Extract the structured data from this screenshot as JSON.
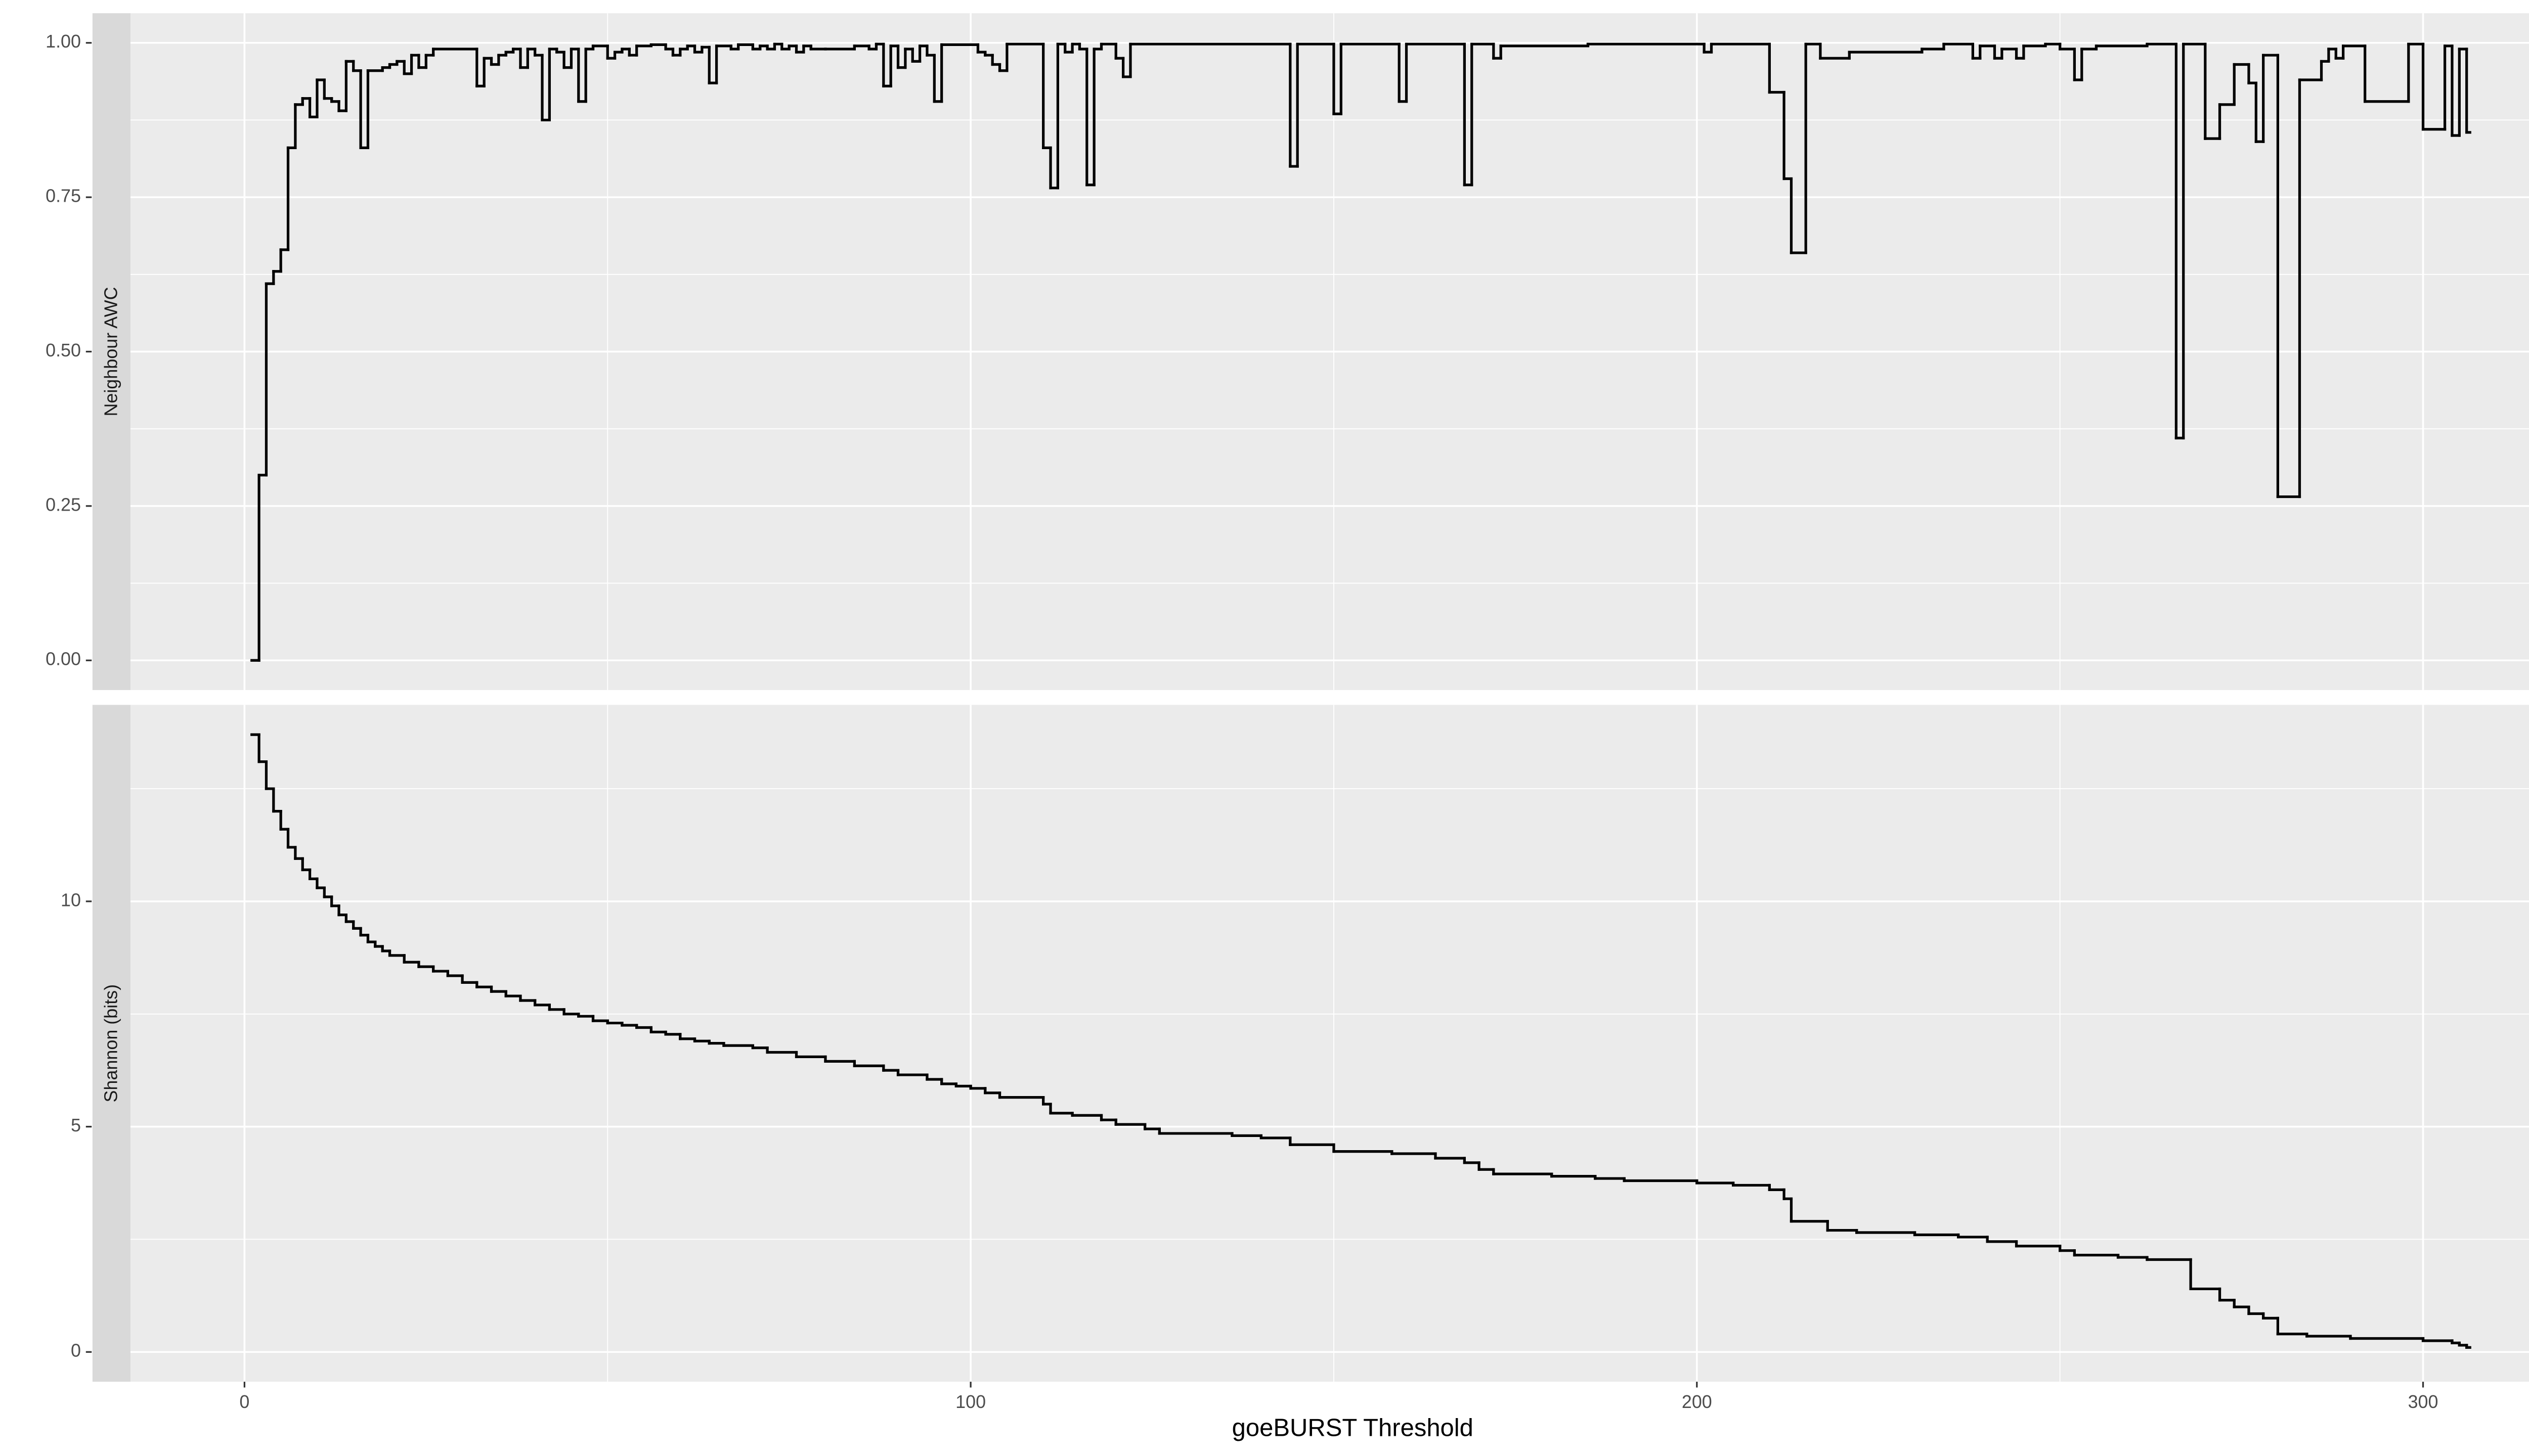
{
  "chart_data": [
    {
      "type": "line",
      "ylabel": "Neighbour AWC",
      "color": "#000000",
      "grid": true,
      "xlim": [
        -15.7,
        320.9
      ],
      "xticks": [
        0,
        100,
        200,
        300
      ],
      "ylim": [
        -0.048,
        1.048
      ],
      "yticks": [
        {
          "value": 0,
          "label": "0.00"
        },
        {
          "value": 0.25,
          "label": "0.25"
        },
        {
          "value": 0.5,
          "label": "0.50"
        },
        {
          "value": 0.75,
          "label": "0.75"
        },
        {
          "value": 1,
          "label": "1.00"
        }
      ],
      "x": [
        1,
        2,
        3,
        4,
        5,
        6,
        7,
        8,
        9,
        10,
        11,
        12,
        13,
        14,
        15,
        16,
        17,
        19,
        20,
        21,
        22,
        23,
        24,
        25,
        26,
        32,
        33,
        34,
        35,
        36,
        37,
        38,
        39,
        40,
        41,
        42,
        43,
        44,
        45,
        46,
        47,
        48,
        50,
        51,
        52,
        53,
        54,
        56,
        58,
        59,
        60,
        61,
        62,
        63,
        64,
        65,
        67,
        68,
        70,
        71,
        72,
        73,
        74,
        75,
        76,
        77,
        78,
        80,
        84,
        86,
        87,
        88,
        89,
        90,
        91,
        92,
        93,
        94,
        95,
        96,
        101,
        102,
        103,
        104,
        105,
        110,
        111,
        112,
        113,
        114,
        115,
        116,
        117,
        118,
        120,
        121,
        122,
        144,
        145,
        150,
        151,
        159,
        160,
        168,
        169,
        172,
        173,
        185,
        201,
        202,
        210,
        212,
        213,
        215,
        217,
        221,
        231,
        234,
        238,
        239,
        241,
        242,
        244,
        245,
        248,
        250,
        252,
        253,
        255,
        262,
        266,
        267,
        270,
        272,
        274,
        276,
        277,
        278,
        280,
        283,
        286,
        287,
        288,
        289,
        292,
        298,
        300,
        303,
        304,
        305,
        306
      ],
      "values": [
        0,
        0.3,
        0.61,
        0.63,
        0.665,
        0.83,
        0.9,
        0.91,
        0.88,
        0.94,
        0.91,
        0.905,
        0.89,
        0.97,
        0.955,
        0.83,
        0.955,
        0.96,
        0.965,
        0.97,
        0.95,
        0.98,
        0.96,
        0.98,
        0.99,
        0.93,
        0.975,
        0.965,
        0.98,
        0.985,
        0.99,
        0.96,
        0.99,
        0.98,
        0.875,
        0.99,
        0.985,
        0.96,
        0.99,
        0.905,
        0.99,
        0.995,
        0.975,
        0.985,
        0.99,
        0.98,
        0.995,
        0.997,
        0.99,
        0.98,
        0.99,
        0.995,
        0.985,
        0.993,
        0.935,
        0.995,
        0.99,
        0.997,
        0.99,
        0.995,
        0.99,
        0.998,
        0.99,
        0.995,
        0.985,
        0.995,
        0.99,
        0.99,
        0.995,
        0.99,
        0.998,
        0.93,
        0.995,
        0.96,
        0.99,
        0.97,
        0.995,
        0.98,
        0.905,
        0.997,
        0.985,
        0.98,
        0.965,
        0.955,
        0.998,
        0.83,
        0.765,
        0.998,
        0.985,
        0.998,
        0.99,
        0.77,
        0.99,
        0.998,
        0.975,
        0.945,
        0.998,
        0.8,
        0.998,
        0.885,
        0.998,
        0.905,
        0.998,
        0.77,
        0.998,
        0.975,
        0.995,
        0.998,
        0.985,
        0.998,
        0.92,
        0.78,
        0.66,
        0.998,
        0.975,
        0.985,
        0.99,
        0.998,
        0.975,
        0.995,
        0.975,
        0.99,
        0.975,
        0.995,
        0.998,
        0.99,
        0.94,
        0.99,
        0.995,
        0.998,
        0.36,
        0.998,
        0.845,
        0.9,
        0.965,
        0.935,
        0.84,
        0.98,
        0.265,
        0.94,
        0.97,
        0.99,
        0.975,
        0.995,
        0.905,
        0.998,
        0.86,
        0.995,
        0.85,
        0.99,
        0.855
      ]
    },
    {
      "type": "line",
      "ylabel": "Shannon (bits)",
      "xlabel": "goeBURST Threshold",
      "color": "#000000",
      "grid": true,
      "xlim": [
        -15.7,
        320.9
      ],
      "xticks": [
        0,
        100,
        200,
        300
      ],
      "ylim": [
        -0.66,
        14.36
      ],
      "yticks": [
        0,
        5,
        10
      ],
      "x": [
        1,
        2,
        3,
        4,
        5,
        6,
        7,
        8,
        9,
        10,
        11,
        12,
        13,
        14,
        15,
        16,
        17,
        18,
        19,
        20,
        22,
        24,
        26,
        28,
        30,
        32,
        34,
        36,
        38,
        40,
        42,
        44,
        46,
        48,
        50,
        52,
        54,
        56,
        58,
        60,
        62,
        64,
        66,
        70,
        72,
        76,
        80,
        84,
        88,
        90,
        94,
        96,
        98,
        100,
        102,
        104,
        110,
        111,
        114,
        118,
        120,
        124,
        126,
        136,
        140,
        144,
        150,
        158,
        164,
        168,
        170,
        172,
        180,
        186,
        190,
        200,
        205,
        210,
        212,
        213,
        218,
        222,
        230,
        236,
        240,
        244,
        250,
        252,
        258,
        262,
        268,
        272,
        274,
        276,
        278,
        280,
        284,
        290,
        300,
        304,
        305,
        306
      ],
      "values": [
        13.7,
        13.1,
        12.5,
        12.0,
        11.6,
        11.2,
        10.95,
        10.7,
        10.5,
        10.3,
        10.1,
        9.9,
        9.7,
        9.55,
        9.4,
        9.25,
        9.1,
        9.0,
        8.9,
        8.8,
        8.65,
        8.55,
        8.45,
        8.35,
        8.2,
        8.1,
        8.0,
        7.9,
        7.8,
        7.7,
        7.6,
        7.5,
        7.45,
        7.35,
        7.3,
        7.25,
        7.2,
        7.1,
        7.05,
        6.95,
        6.9,
        6.85,
        6.8,
        6.75,
        6.65,
        6.55,
        6.45,
        6.35,
        6.25,
        6.15,
        6.05,
        5.95,
        5.9,
        5.85,
        5.75,
        5.65,
        5.5,
        5.3,
        5.25,
        5.15,
        5.05,
        4.95,
        4.85,
        4.8,
        4.75,
        4.6,
        4.45,
        4.4,
        4.3,
        4.2,
        4.05,
        3.95,
        3.9,
        3.85,
        3.8,
        3.75,
        3.7,
        3.6,
        3.4,
        2.9,
        2.7,
        2.65,
        2.6,
        2.55,
        2.45,
        2.35,
        2.25,
        2.15,
        2.1,
        2.05,
        1.4,
        1.15,
        1.0,
        0.85,
        0.75,
        0.4,
        0.35,
        0.3,
        0.25,
        0.2,
        0.15,
        0.1
      ]
    }
  ]
}
